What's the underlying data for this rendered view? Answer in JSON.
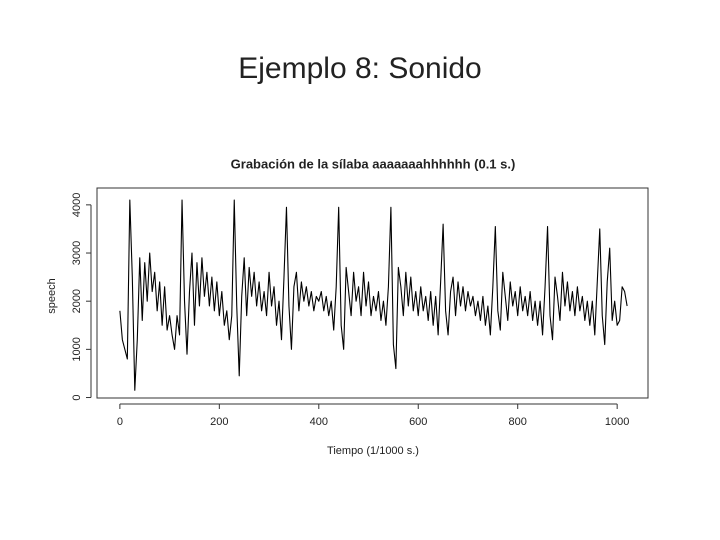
{
  "slide_title": "Ejemplo 8: Sonido",
  "chart_data": {
    "type": "line",
    "title": "Grabación de la sílaba aaaaaaahhhhhh (0.1 s.)",
    "x_label": "Tiempo (1/1000 s.)",
    "y_label": "speech",
    "color": "#000000",
    "xlim": [
      -46,
      1062
    ],
    "ylim": [
      -10,
      4350
    ],
    "xticks": [
      0,
      200,
      400,
      600,
      800,
      1000
    ],
    "yticks": [
      0,
      1000,
      2000,
      3000,
      4000
    ],
    "x": [
      0,
      5,
      10,
      15,
      20,
      25,
      30,
      35,
      40,
      45,
      50,
      55,
      60,
      65,
      70,
      75,
      80,
      85,
      90,
      95,
      100,
      105,
      110,
      115,
      120,
      125,
      130,
      135,
      140,
      145,
      150,
      155,
      160,
      165,
      170,
      175,
      180,
      185,
      190,
      195,
      200,
      205,
      210,
      215,
      220,
      225,
      230,
      235,
      240,
      245,
      250,
      255,
      260,
      265,
      270,
      275,
      280,
      285,
      290,
      295,
      300,
      305,
      310,
      315,
      320,
      325,
      330,
      335,
      340,
      345,
      350,
      355,
      360,
      365,
      370,
      375,
      380,
      385,
      390,
      395,
      400,
      405,
      410,
      415,
      420,
      425,
      430,
      435,
      440,
      445,
      450,
      455,
      460,
      465,
      470,
      475,
      480,
      485,
      490,
      495,
      500,
      505,
      510,
      515,
      520,
      525,
      530,
      535,
      540,
      545,
      550,
      555,
      560,
      565,
      570,
      575,
      580,
      585,
      590,
      595,
      600,
      605,
      610,
      615,
      620,
      625,
      630,
      635,
      640,
      645,
      650,
      655,
      660,
      665,
      670,
      675,
      680,
      685,
      690,
      695,
      700,
      705,
      710,
      715,
      720,
      725,
      730,
      735,
      740,
      745,
      750,
      755,
      760,
      765,
      770,
      775,
      780,
      785,
      790,
      795,
      800,
      805,
      810,
      815,
      820,
      825,
      830,
      835,
      840,
      845,
      850,
      855,
      860,
      865,
      870,
      875,
      880,
      885,
      890,
      895,
      900,
      905,
      910,
      915,
      920,
      925,
      930,
      935,
      940,
      945,
      950,
      955,
      960,
      965,
      970,
      975,
      980,
      985,
      990,
      995,
      1000,
      1005,
      1010,
      1015,
      1020
    ],
    "values": [
      1800,
      1200,
      1000,
      800,
      4100,
      2500,
      150,
      1200,
      2900,
      1600,
      2800,
      2000,
      3000,
      2200,
      2600,
      1800,
      2400,
      1500,
      2300,
      1400,
      1700,
      1300,
      1000,
      1700,
      1300,
      4100,
      2000,
      900,
      2200,
      3000,
      1500,
      2800,
      1900,
      2900,
      2100,
      2600,
      1900,
      2500,
      1800,
      2400,
      1700,
      2200,
      1500,
      1800,
      1200,
      1700,
      4100,
      1900,
      450,
      2100,
      2900,
      1700,
      2700,
      2100,
      2600,
      1900,
      2400,
      1800,
      2200,
      1700,
      2600,
      1900,
      2300,
      1500,
      2000,
      1200,
      2500,
      3950,
      1900,
      1000,
      2300,
      2600,
      1800,
      2400,
      2000,
      2300,
      1900,
      2200,
      1800,
      2100,
      2000,
      2200,
      1800,
      2100,
      1700,
      2000,
      1400,
      2300,
      3950,
      1500,
      1000,
      2700,
      2200,
      1700,
      2600,
      2000,
      2300,
      1700,
      2600,
      1900,
      2400,
      1700,
      2100,
      1800,
      2200,
      1600,
      2000,
      1500,
      2300,
      3950,
      1100,
      600,
      2700,
      2300,
      1700,
      2600,
      1900,
      2500,
      1800,
      2200,
      1700,
      2300,
      1800,
      2100,
      1600,
      2200,
      1500,
      2100,
      1300,
      2400,
      3600,
      1800,
      1300,
      2200,
      2500,
      1700,
      2400,
      1900,
      2300,
      1800,
      2200,
      1900,
      2100,
      1700,
      2000,
      1600,
      2100,
      1500,
      1900,
      1300,
      2300,
      3550,
      1800,
      1400,
      2600,
      2100,
      1600,
      2400,
      1900,
      2200,
      1700,
      2300,
      1800,
      2100,
      1700,
      2200,
      1600,
      2000,
      1500,
      2000,
      1300,
      2300,
      3550,
      1700,
      1200,
      2500,
      2100,
      1600,
      2600,
      1900,
      2400,
      1800,
      2200,
      1700,
      2300,
      1800,
      2100,
      1600,
      2000,
      1500,
      2000,
      1300,
      2400,
      3500,
      1700,
      1100,
      2400,
      3100,
      1600,
      2000,
      1500,
      1600,
      2300,
      2200,
      1900
    ]
  }
}
